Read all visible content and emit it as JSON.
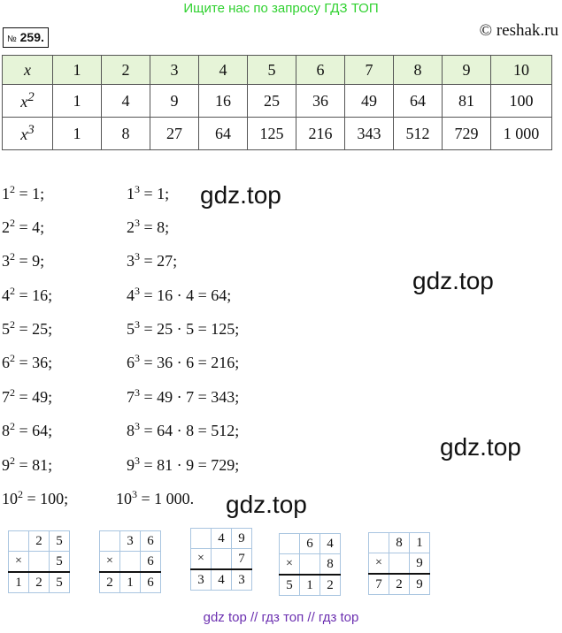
{
  "banner": "Ищите нас по запросу ГДЗ ТОП",
  "badge": {
    "no": "№",
    "num": "259."
  },
  "site": "© reshak.ru",
  "table": {
    "h1": "x",
    "h2": "x",
    "h2sup": "2",
    "h3": "x",
    "h3sup": "3",
    "x": [
      "1",
      "2",
      "3",
      "4",
      "5",
      "6",
      "7",
      "8",
      "9",
      "10"
    ],
    "sq": [
      "1",
      "4",
      "9",
      "16",
      "25",
      "36",
      "49",
      "64",
      "81",
      "100"
    ],
    "cu": [
      "1",
      "8",
      "27",
      "64",
      "125",
      "216",
      "343",
      "512",
      "729",
      "1 000"
    ]
  },
  "squares": [
    {
      "b": "1",
      "e": "2",
      "r": "= 1;"
    },
    {
      "b": "2",
      "e": "2",
      "r": "= 4;"
    },
    {
      "b": "3",
      "e": "2",
      "r": "= 9;"
    },
    {
      "b": "4",
      "e": "2",
      "r": "= 16;"
    },
    {
      "b": "5",
      "e": "2",
      "r": "= 25;"
    },
    {
      "b": "6",
      "e": "2",
      "r": "= 36;"
    },
    {
      "b": "7",
      "e": "2",
      "r": "= 49;"
    },
    {
      "b": "8",
      "e": "2",
      "r": "= 64;"
    },
    {
      "b": "9",
      "e": "2",
      "r": "= 81;"
    },
    {
      "b": "10",
      "e": "2",
      "r": "= 100;"
    }
  ],
  "cubes": [
    {
      "b": "1",
      "e": "3",
      "r": "= 1;"
    },
    {
      "b": "2",
      "e": "3",
      "r": "= 8;"
    },
    {
      "b": "3",
      "e": "3",
      "r": "= 27;"
    },
    {
      "b": "4",
      "e": "3",
      "r": "= 16 · 4 = 64;"
    },
    {
      "b": "5",
      "e": "3",
      "r": "= 25 · 5 = 125;"
    },
    {
      "b": "6",
      "e": "3",
      "r": "= 36 · 6 = 216;"
    },
    {
      "b": "7",
      "e": "3",
      "r": "= 49 · 7 = 343;"
    },
    {
      "b": "8",
      "e": "3",
      "r": "= 64 · 8 = 512;"
    },
    {
      "b": "9",
      "e": "3",
      "r": "= 81 · 9 = 729;"
    },
    {
      "b": "10",
      "e": "3",
      "r": "= 1 000."
    }
  ],
  "watermark": "gdz.top",
  "mult": [
    {
      "op": "×",
      "a": [
        "2",
        "5"
      ],
      "b": "5",
      "r": [
        "1",
        "2",
        "5"
      ]
    },
    {
      "op": "×",
      "a": [
        "3",
        "6"
      ],
      "b": "6",
      "r": [
        "2",
        "1",
        "6"
      ]
    },
    {
      "op": "×",
      "a": [
        "4",
        "9"
      ],
      "b": "7",
      "r": [
        "3",
        "4",
        "3"
      ]
    },
    {
      "op": "×",
      "a": [
        "6",
        "4"
      ],
      "b": "8",
      "r": [
        "5",
        "1",
        "2"
      ]
    },
    {
      "op": "×",
      "a": [
        "8",
        "1"
      ],
      "b": "9",
      "r": [
        "7",
        "2",
        "9"
      ]
    }
  ],
  "footer": "gdz top  //  гдз топ  //  гдз top"
}
